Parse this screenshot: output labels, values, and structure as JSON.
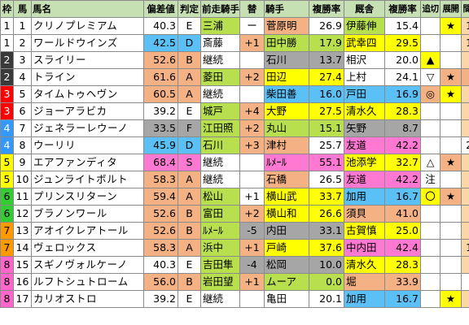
{
  "headers": [
    "枠",
    "馬",
    "馬名",
    "偏差値",
    "判定",
    "前走騎手",
    "替",
    "騎手",
    "複勝率",
    "厩舎",
    "複勝率",
    "追切",
    "展開",
    "間隔"
  ],
  "rows": [
    {
      "waku": "1",
      "uma": "1",
      "name": "クリノプレミアム",
      "hensa": "40.3",
      "hantei": "E",
      "prev": "三浦",
      "kae": "ー",
      "kishu": "菅原明",
      "rate": "26.9",
      "kyusha": "伊藤伸",
      "rate2": "15.4",
      "oikiri": "",
      "tenkai": "★",
      "kankaku": "12",
      "last": "1"
    },
    {
      "waku": "1",
      "uma": "2",
      "name": "ワールドウインズ",
      "hensa": "42.5",
      "hantei": "D",
      "prev": "斎藤",
      "kae": "+1",
      "kishu": "田中勝",
      "rate": "17.9",
      "kyusha": "武幸四",
      "rate2": "29.5",
      "oikiri": "",
      "tenkai": "",
      "kankaku": "10",
      "last": ""
    },
    {
      "waku": "2",
      "uma": "3",
      "name": "スライリー",
      "hensa": "52.6",
      "hantei": "B",
      "prev": "継続",
      "kae": "",
      "kishu": "石川",
      "rate": "13.7",
      "kyusha": "相沢",
      "rate2": "20.0",
      "oikiri": "▲",
      "tenkai": "",
      "kankaku": "4",
      "last": ""
    },
    {
      "waku": "2",
      "uma": "4",
      "name": "トライン",
      "hensa": "61.6",
      "hantei": "A",
      "prev": "菱田",
      "kae": "+2",
      "kishu": "田辺",
      "rate": "27.4",
      "kyusha": "上村",
      "rate2": "24.1",
      "oikiri": "▽",
      "tenkai": "★",
      "kankaku": "7",
      "last": "3"
    },
    {
      "waku": "3",
      "uma": "5",
      "name": "タイムトゥヘヴン",
      "hensa": "60.5",
      "hantei": "A",
      "prev": "継続",
      "kae": "",
      "kishu": "柴田善",
      "rate": "16.0",
      "kyusha": "戸田",
      "rate2": "16.9",
      "oikiri": "◎",
      "tenkai": "★",
      "kankaku": "5",
      "last": "3"
    },
    {
      "waku": "3",
      "uma": "6",
      "name": "ジョーアラビカ",
      "hensa": "39.2",
      "hantei": "E",
      "prev": "城戸",
      "kae": "+4",
      "kishu": "大野",
      "rate": "27.5",
      "kyusha": "清水久",
      "rate2": "28.3",
      "oikiri": "",
      "tenkai": "",
      "kankaku": "4",
      "last": ""
    },
    {
      "waku": "4",
      "uma": "7",
      "name": "ジェネラーレウーノ",
      "hensa": "33.5",
      "hantei": "F",
      "prev": "江田照",
      "kae": "+2",
      "kishu": "丸山",
      "rate": "15.1",
      "kyusha": "矢野",
      "rate2": "8.7",
      "oikiri": "",
      "tenkai": "",
      "kankaku": "5",
      "last": ""
    },
    {
      "waku": "4",
      "uma": "8",
      "name": "ウーリリ",
      "hensa": "45.9",
      "hantei": "D",
      "prev": "石川",
      "kae": "+3",
      "kishu": "津村",
      "rate": "25.7",
      "kyusha": "友道",
      "rate2": "42.2",
      "oikiri": "",
      "tenkai": "",
      "kankaku": "26",
      "last": ""
    },
    {
      "waku": "5",
      "uma": "9",
      "name": "エアファンディタ",
      "hensa": "68.4",
      "hantei": "S",
      "prev": "継続",
      "kae": "",
      "kishu": "ﾙﾒｰﾙ",
      "rate": "55.1",
      "kyusha": "池添学",
      "rate2": "32.7",
      "oikiri": "△",
      "tenkai": "★",
      "kankaku": "5",
      "last": ""
    },
    {
      "waku": "5",
      "uma": "10",
      "name": "ジュンライトボルト",
      "hensa": "58.3",
      "hantei": "A",
      "prev": "継続",
      "kae": "",
      "kishu": "石橋",
      "rate": "26.5",
      "kyusha": "友道",
      "rate2": "42.2",
      "oikiri": "注",
      "tenkai": "",
      "kankaku": "5",
      "last": ""
    },
    {
      "waku": "6",
      "uma": "11",
      "name": "プリンスリターン",
      "hensa": "59.4",
      "hantei": "A",
      "prev": "松山",
      "kae": "+1",
      "kishu": "横山武",
      "rate": "33.7",
      "kyusha": "加用",
      "rate2": "16.7",
      "oikiri": "〇",
      "tenkai": "★",
      "kankaku": "5",
      "last": ""
    },
    {
      "waku": "6",
      "uma": "12",
      "name": "ブラノンワール",
      "hensa": "52.6",
      "hantei": "B",
      "prev": "富田",
      "kae": "+2",
      "kishu": "横山和",
      "rate": "26.6",
      "kyusha": "須貝",
      "rate2": "41.0",
      "oikiri": "",
      "tenkai": "",
      "kankaku": "5",
      "last": ""
    },
    {
      "waku": "7",
      "uma": "13",
      "name": "アオイクレアトール",
      "hensa": "52.6",
      "hantei": "B",
      "prev": "ﾙﾒｰﾙ",
      "kae": "-5",
      "kishu": "内田",
      "rate": "33.1",
      "kyusha": "古賀慎",
      "rate2": "25.0",
      "oikiri": "",
      "tenkai": "",
      "kankaku": "5",
      "last": ""
    },
    {
      "waku": "7",
      "uma": "14",
      "name": "ヴェロックス",
      "hensa": "58.3",
      "hantei": "A",
      "prev": "浜中",
      "kae": "+1",
      "kishu": "戸崎",
      "rate": "37.6",
      "kyusha": "中内田",
      "rate2": "42.4",
      "oikiri": "",
      "tenkai": "",
      "kankaku": "10",
      "last": ""
    },
    {
      "waku": "8",
      "uma": "15",
      "name": "スギノヴォルケーノ",
      "hensa": "40.3",
      "hantei": "E",
      "prev": "吉田隼",
      "kae": "-4",
      "kishu": "松岡",
      "rate": "10.0",
      "kyusha": "清水久",
      "rate2": "28.3",
      "oikiri": "",
      "tenkai": "",
      "kankaku": "5",
      "last": ""
    },
    {
      "waku": "8",
      "uma": "16",
      "name": "ルフトシュトローム",
      "hensa": "56.0",
      "hantei": "B",
      "prev": "岩田望",
      "kae": "+1",
      "kishu": "ムーア",
      "rate": "0.0",
      "kyusha": "堀",
      "rate2": "33.9",
      "oikiri": "",
      "tenkai": "",
      "kankaku": "",
      "last": ""
    },
    {
      "waku": "8",
      "uma": "17",
      "name": "カリオストロ",
      "hensa": "39.2",
      "hantei": "E",
      "prev": "継続",
      "kae": "",
      "kishu": "亀田",
      "rate": "20.1",
      "kyusha": "加用",
      "rate2": "16.7",
      "oikiri": "",
      "tenkai": "★",
      "kankaku": "5",
      "last": ""
    }
  ]
}
